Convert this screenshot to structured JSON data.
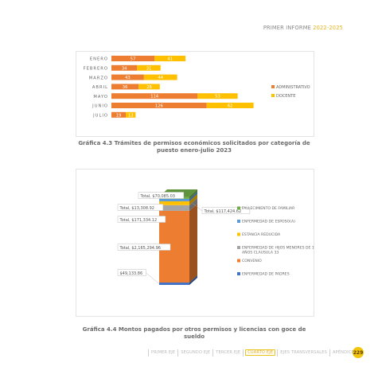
{
  "header": {
    "title": "PRIMER INFORME",
    "years": "2022-2025"
  },
  "chart_data": [
    {
      "type": "bar",
      "orientation": "horizontal",
      "stacked": true,
      "categories": [
        "ENERO",
        "FEBRERO",
        "MARZO",
        "ABRIL",
        "MAYO",
        "JUNIO",
        "JULIO"
      ],
      "series": [
        {
          "name": "ADMINISTRATIVO",
          "color": "#ed7d31",
          "values": [
            57,
            34,
            43,
            36,
            114,
            126,
            19
          ]
        },
        {
          "name": "DOCENTE",
          "color": "#ffc000",
          "values": [
            41,
            31,
            44,
            28,
            53,
            62,
            13
          ]
        }
      ],
      "legend_position": "right",
      "grid": false
    },
    {
      "type": "bar",
      "stacked": true,
      "style": "3d",
      "segments": [
        {
          "name": "ENFERMEDAD DE PADRES",
          "label": "$49,133.86",
          "value": 49133.86,
          "color": "#4472c4"
        },
        {
          "name": "CONVENIO",
          "label": "Total, $2,165,294.96",
          "value": 2165294.96,
          "color": "#ed7d31"
        },
        {
          "name": "ENFERMEDAD DE HIJOS MENORES DE 12 AÑOS CLAUSULA 33",
          "label": "Total, $171,334.12",
          "value": 171334.12,
          "color": "#a5a5a5"
        },
        {
          "name": "ESTANCIA REDUCIDA",
          "label": "Total, $117,424.62",
          "value": 117424.62,
          "color": "#ffc000"
        },
        {
          "name": "ENFERMEDAD DE ESPOSO(A)",
          "label": "Total, $13,308.92",
          "value": 13308.92,
          "color": "#5b9bd5"
        },
        {
          "name": "FALLECIMIENTO DE FAMILIAR",
          "label": "Total, $70,085.03",
          "value": 70085.03,
          "color": "#70ad47"
        }
      ],
      "legend_order": [
        "FALLECIMIENTO DE FAMILIAR",
        "ENFERMEDAD DE ESPOSO(A)",
        "ESTANCIA REDUCIDA",
        "ENFERMEDAD DE HIJOS MENORES DE 12 AÑOS CLAUSULA 33",
        "CONVENIO",
        "ENFERMEDAD DE PADRES"
      ],
      "legend_position": "right",
      "grid": false
    }
  ],
  "captions": {
    "chart1": "Gráfica 4.3 Trámites de permisos económicos solicitados por categoría de puesto enero-julio 2023",
    "chart2": "Gráfica 4.4 Montos pagados por otros permisos y licencias con goce de sueldo"
  },
  "footer": {
    "tabs": [
      "PRIMER EJE",
      "SEGUNDO EJE",
      "TERCER EJE",
      "CUARTO EJE",
      "EJES TRANSVERSALES",
      "APÉNDICE"
    ],
    "active": "CUARTO EJE",
    "page": "229"
  }
}
